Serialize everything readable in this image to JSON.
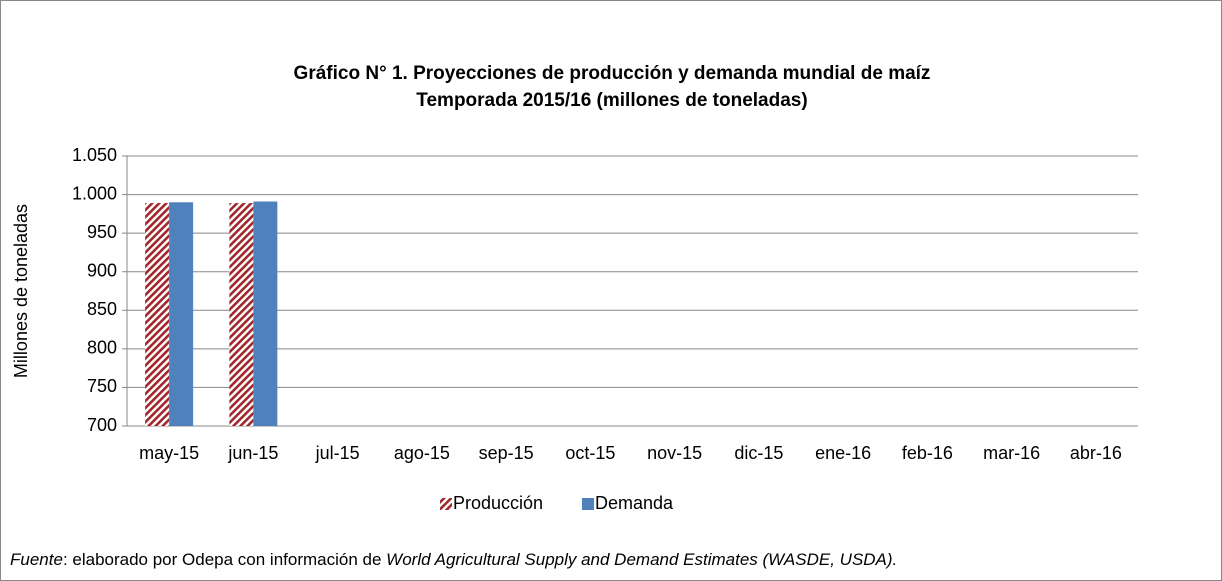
{
  "chart_data": {
    "type": "bar",
    "title": [
      "Gráfico N° 1. Proyecciones de producción y demanda mundial de maíz",
      "Temporada 2015/16 (millones de toneladas)"
    ],
    "ylabel": "Millones de toneladas",
    "categories": [
      "may-15",
      "jun-15",
      "jul-15",
      "ago-15",
      "sep-15",
      "oct-15",
      "nov-15",
      "dic-15",
      "ene-16",
      "feb-16",
      "mar-16",
      "abr-16"
    ],
    "series": [
      {
        "name": "Producción",
        "color": "#a0282d",
        "pattern": "hatch",
        "values": [
          989,
          989,
          null,
          null,
          null,
          null,
          null,
          null,
          null,
          null,
          null,
          null
        ]
      },
      {
        "name": "Demanda",
        "color": "#4f81bd",
        "values": [
          990,
          991,
          null,
          null,
          null,
          null,
          null,
          null,
          null,
          null,
          null,
          null
        ]
      }
    ],
    "ylim": [
      700,
      1050
    ],
    "yticks": [
      700,
      750,
      800,
      850,
      900,
      950,
      {
        "value": 1000,
        "label": "1.000"
      },
      {
        "value": 1050,
        "label": "1.050"
      }
    ],
    "grid": true,
    "legend": "bottom",
    "source": {
      "label": "Fuente",
      "text": ": elaborado por Odepa con información de ",
      "italic": "World Agricultural Supply and Demand Estimates (WASDE, USDA)."
    }
  }
}
